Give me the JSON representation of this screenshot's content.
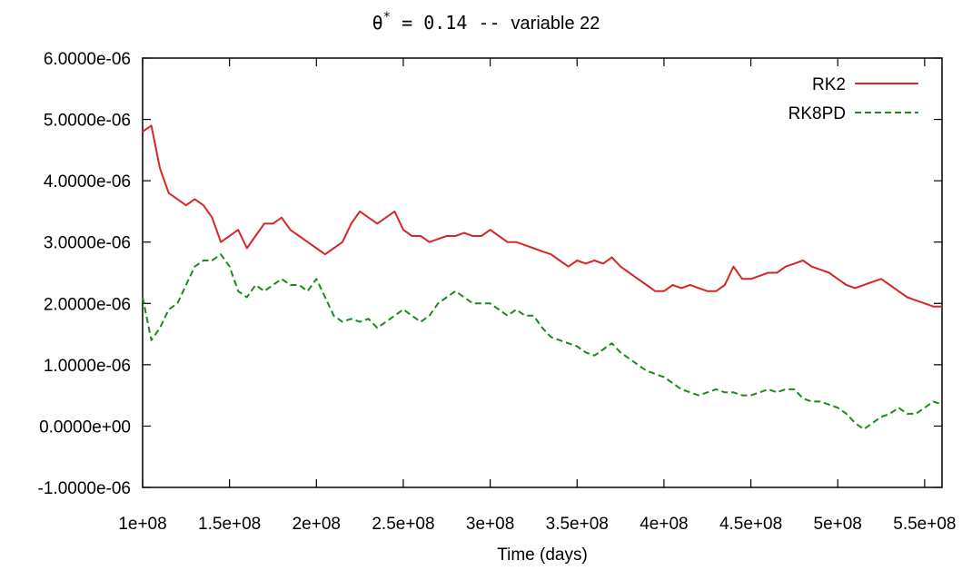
{
  "chart_data": {
    "type": "line",
    "title": {
      "symbol": "θ",
      "superscript": "*",
      "equals": " = 0.14 -- ",
      "rest": "variable 22"
    },
    "xlabel": "Time (days)",
    "ylabel": "",
    "xlim": [
      100000000,
      560000000
    ],
    "ylim": [
      -1e-06,
      6e-06
    ],
    "xticks": [
      100000000,
      150000000,
      200000000,
      250000000,
      300000000,
      350000000,
      400000000,
      450000000,
      500000000,
      550000000
    ],
    "xtick_labels": [
      "1e+08",
      "1.5e+08",
      "2e+08",
      "2.5e+08",
      "3e+08",
      "3.5e+08",
      "4e+08",
      "4.5e+08",
      "5e+08",
      "5.5e+08"
    ],
    "yticks": [
      -1e-06,
      0,
      1e-06,
      2e-06,
      3e-06,
      4e-06,
      5e-06,
      6e-06
    ],
    "ytick_labels": [
      "-1.0000e-06",
      "0.0000e+00",
      "1.0000e-06",
      "2.0000e-06",
      "3.0000e-06",
      "4.0000e-06",
      "5.0000e-06",
      "6.0000e-06"
    ],
    "grid": false,
    "legend_position": "top-right",
    "series": [
      {
        "name": "RK2",
        "color": "#d62728",
        "dash": "solid",
        "x": [
          100000000,
          105000000,
          110000000,
          115000000,
          120000000,
          125000000,
          130000000,
          135000000,
          140000000,
          145000000,
          150000000,
          155000000,
          160000000,
          165000000,
          170000000,
          175000000,
          180000000,
          185000000,
          190000000,
          195000000,
          200000000,
          205000000,
          210000000,
          215000000,
          220000000,
          225000000,
          230000000,
          235000000,
          240000000,
          245000000,
          250000000,
          255000000,
          260000000,
          265000000,
          270000000,
          275000000,
          280000000,
          285000000,
          290000000,
          295000000,
          300000000,
          305000000,
          310000000,
          315000000,
          320000000,
          325000000,
          330000000,
          335000000,
          340000000,
          345000000,
          350000000,
          355000000,
          360000000,
          365000000,
          370000000,
          375000000,
          380000000,
          385000000,
          390000000,
          395000000,
          400000000,
          405000000,
          410000000,
          415000000,
          420000000,
          425000000,
          430000000,
          435000000,
          440000000,
          445000000,
          450000000,
          455000000,
          460000000,
          465000000,
          470000000,
          475000000,
          480000000,
          485000000,
          490000000,
          495000000,
          500000000,
          505000000,
          510000000,
          515000000,
          520000000,
          525000000,
          530000000,
          535000000,
          540000000,
          545000000,
          550000000,
          555000000,
          560000000
        ],
        "y": [
          4.8e-06,
          4.9e-06,
          4.2e-06,
          3.8e-06,
          3.7e-06,
          3.6e-06,
          3.7e-06,
          3.6e-06,
          3.4e-06,
          3e-06,
          3.1e-06,
          3.2e-06,
          2.9e-06,
          3.1e-06,
          3.3e-06,
          3.3e-06,
          3.4e-06,
          3.2e-06,
          3.1e-06,
          3e-06,
          2.9e-06,
          2.8e-06,
          2.9e-06,
          3e-06,
          3.3e-06,
          3.5e-06,
          3.4e-06,
          3.3e-06,
          3.4e-06,
          3.5e-06,
          3.2e-06,
          3.1e-06,
          3.1e-06,
          3e-06,
          3.05e-06,
          3.1e-06,
          3.1e-06,
          3.15e-06,
          3.1e-06,
          3.1e-06,
          3.2e-06,
          3.1e-06,
          3e-06,
          3e-06,
          2.95e-06,
          2.9e-06,
          2.85e-06,
          2.8e-06,
          2.7e-06,
          2.6e-06,
          2.7e-06,
          2.65e-06,
          2.7e-06,
          2.65e-06,
          2.75e-06,
          2.6e-06,
          2.5e-06,
          2.4e-06,
          2.3e-06,
          2.2e-06,
          2.2e-06,
          2.3e-06,
          2.25e-06,
          2.3e-06,
          2.25e-06,
          2.2e-06,
          2.2e-06,
          2.3e-06,
          2.6e-06,
          2.4e-06,
          2.4e-06,
          2.45e-06,
          2.5e-06,
          2.5e-06,
          2.6e-06,
          2.65e-06,
          2.7e-06,
          2.6e-06,
          2.55e-06,
          2.5e-06,
          2.4e-06,
          2.3e-06,
          2.25e-06,
          2.3e-06,
          2.35e-06,
          2.4e-06,
          2.3e-06,
          2.2e-06,
          2.1e-06,
          2.05e-06,
          2e-06,
          1.95e-06,
          1.95e-06
        ]
      },
      {
        "name": "RK8PD",
        "color": "#1a8a1a",
        "dash": "dashed",
        "x": [
          100000000,
          105000000,
          110000000,
          115000000,
          120000000,
          125000000,
          130000000,
          135000000,
          140000000,
          145000000,
          150000000,
          155000000,
          160000000,
          165000000,
          170000000,
          175000000,
          180000000,
          185000000,
          190000000,
          195000000,
          200000000,
          205000000,
          210000000,
          215000000,
          220000000,
          225000000,
          230000000,
          235000000,
          240000000,
          245000000,
          250000000,
          255000000,
          260000000,
          265000000,
          270000000,
          275000000,
          280000000,
          285000000,
          290000000,
          295000000,
          300000000,
          305000000,
          310000000,
          315000000,
          320000000,
          325000000,
          330000000,
          335000000,
          340000000,
          345000000,
          350000000,
          355000000,
          360000000,
          365000000,
          370000000,
          375000000,
          380000000,
          385000000,
          390000000,
          395000000,
          400000000,
          405000000,
          410000000,
          415000000,
          420000000,
          425000000,
          430000000,
          435000000,
          440000000,
          445000000,
          450000000,
          455000000,
          460000000,
          465000000,
          470000000,
          475000000,
          480000000,
          485000000,
          490000000,
          495000000,
          500000000,
          505000000,
          510000000,
          515000000,
          520000000,
          525000000,
          530000000,
          535000000,
          540000000,
          545000000,
          550000000,
          555000000,
          560000000
        ],
        "y": [
          2.1e-06,
          1.4e-06,
          1.6e-06,
          1.9e-06,
          2e-06,
          2.3e-06,
          2.6e-06,
          2.7e-06,
          2.7e-06,
          2.8e-06,
          2.6e-06,
          2.2e-06,
          2.1e-06,
          2.3e-06,
          2.2e-06,
          2.3e-06,
          2.4e-06,
          2.3e-06,
          2.3e-06,
          2.2e-06,
          2.4e-06,
          2.1e-06,
          1.8e-06,
          1.7e-06,
          1.75e-06,
          1.7e-06,
          1.75e-06,
          1.6e-06,
          1.7e-06,
          1.8e-06,
          1.9e-06,
          1.8e-06,
          1.7e-06,
          1.8e-06,
          2e-06,
          2.1e-06,
          2.2e-06,
          2.1e-06,
          2e-06,
          2e-06,
          2e-06,
          1.9e-06,
          1.8e-06,
          1.9e-06,
          1.8e-06,
          1.8e-06,
          1.6e-06,
          1.45e-06,
          1.4e-06,
          1.35e-06,
          1.3e-06,
          1.2e-06,
          1.15e-06,
          1.25e-06,
          1.35e-06,
          1.2e-06,
          1.1e-06,
          1e-06,
          9e-07,
          8.5e-07,
          8e-07,
          7e-07,
          6e-07,
          5.5e-07,
          5e-07,
          5.5e-07,
          6e-07,
          5.5e-07,
          5.5e-07,
          5e-07,
          5e-07,
          5.5e-07,
          6e-07,
          5.5e-07,
          6e-07,
          6e-07,
          4.5e-07,
          4e-07,
          4e-07,
          3.5e-07,
          3e-07,
          2e-07,
          5e-08,
          -5e-08,
          5e-08,
          1.5e-07,
          2e-07,
          3e-07,
          2e-07,
          2e-07,
          3e-07,
          4e-07,
          3.5e-07
        ]
      }
    ]
  }
}
